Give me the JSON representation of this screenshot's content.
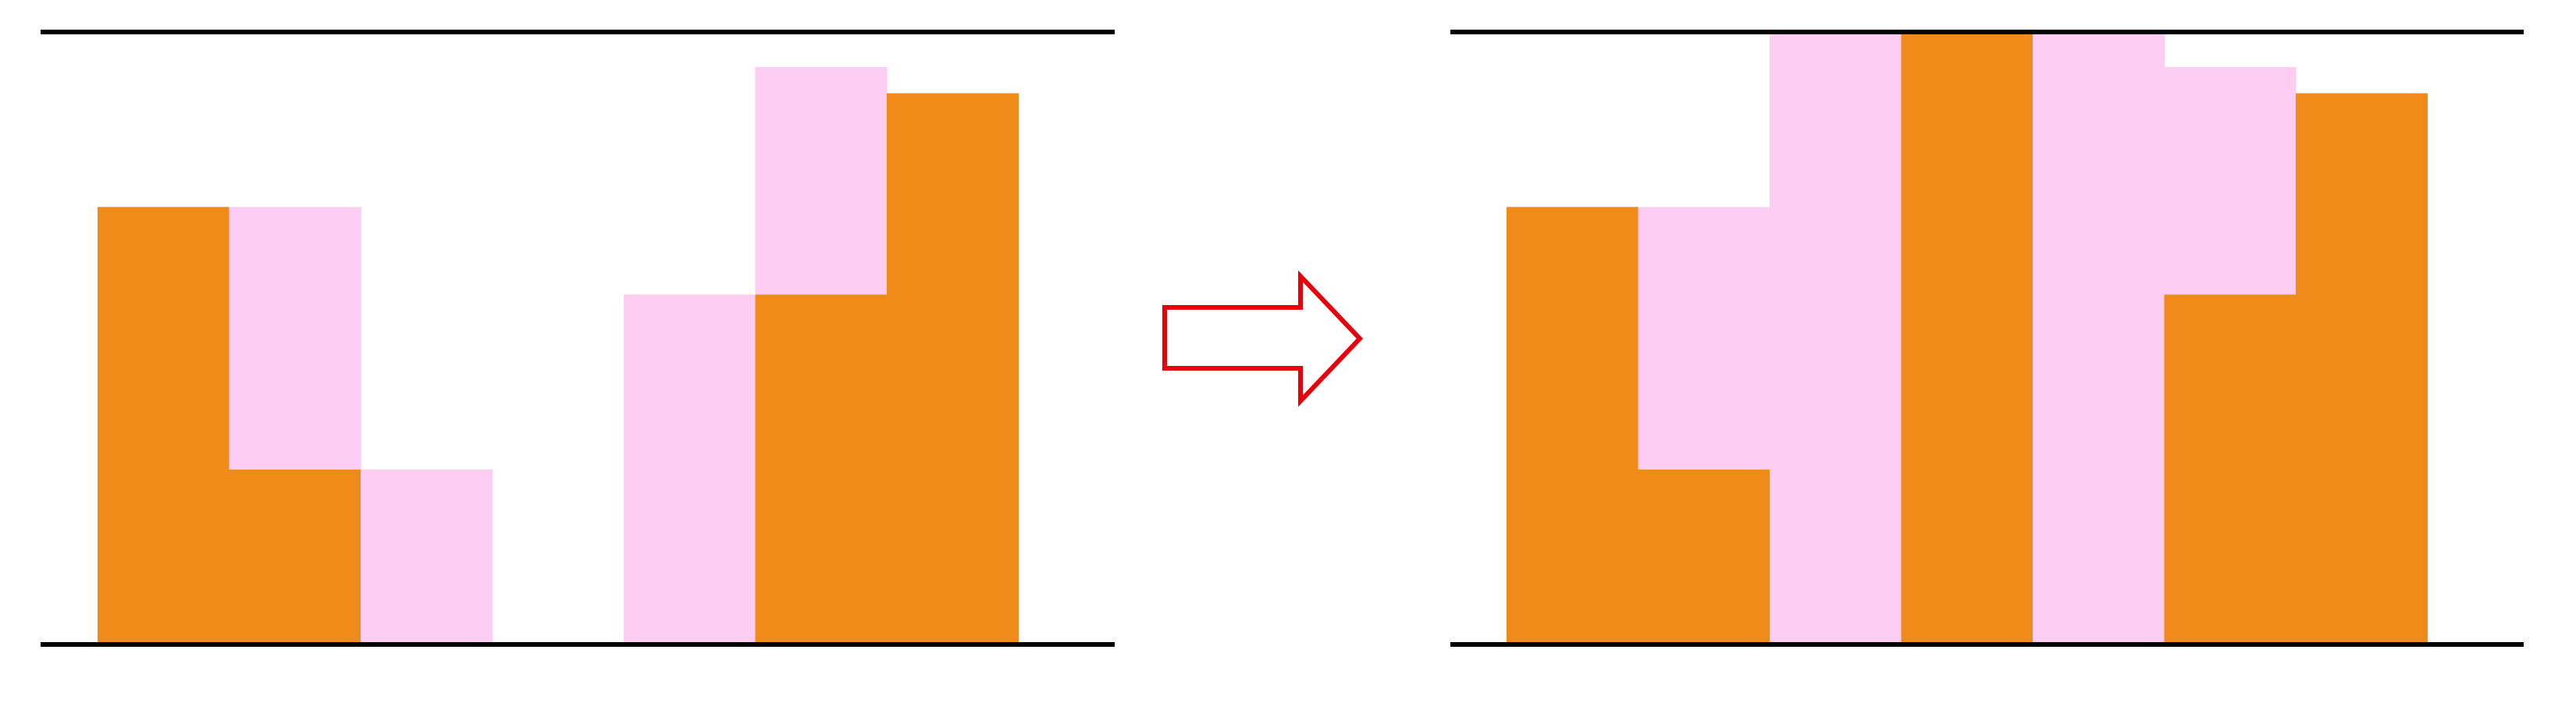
{
  "colors": {
    "background": "#ffffff",
    "solid_bar": "#f08a18",
    "water_fill": "#fdcdf3",
    "bound_line": "#000000",
    "arrow_stroke": "#e8000b",
    "arrow_fill": "#ffffff"
  },
  "diagram": {
    "arrow_icon": "right-arrow-outline-icon",
    "panels": [
      {
        "id": "before",
        "columns": [
          {
            "solid": 5,
            "fill": 0
          },
          {
            "solid": 2,
            "fill": 3
          },
          {
            "solid": 0,
            "fill": 2
          },
          {
            "solid": 0,
            "fill": 0
          },
          {
            "solid": 0,
            "fill": 4
          },
          {
            "solid": 4,
            "fill": 2.6
          },
          {
            "solid": 6.3,
            "fill": 0
          }
        ]
      },
      {
        "id": "after",
        "columns": [
          {
            "solid": 5,
            "fill": 0
          },
          {
            "solid": 2,
            "fill": 3
          },
          {
            "solid": 0,
            "fill": 7
          },
          {
            "solid": 7,
            "fill": 0
          },
          {
            "solid": 0,
            "fill": 7
          },
          {
            "solid": 4,
            "fill": 2.6
          },
          {
            "solid": 6.3,
            "fill": 0
          }
        ]
      }
    ]
  }
}
